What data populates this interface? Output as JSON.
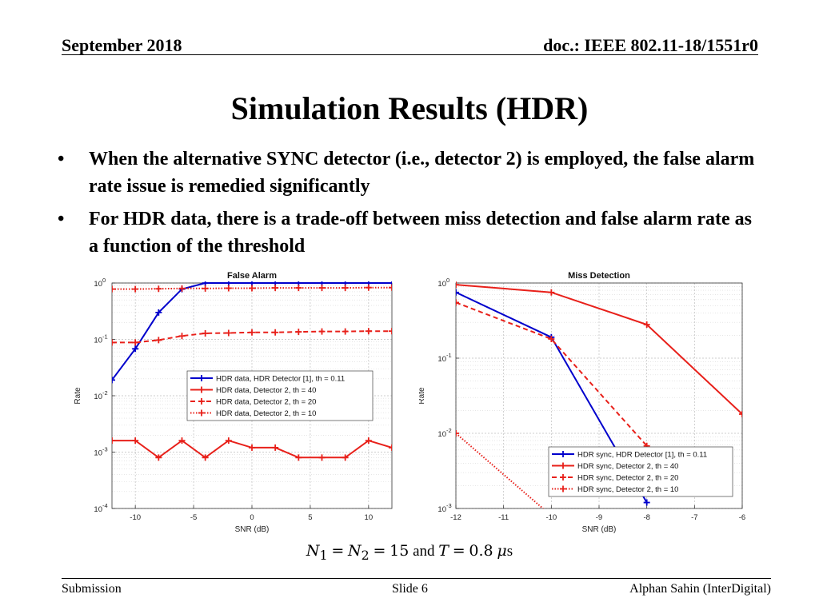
{
  "header": {
    "date": "September 2018",
    "doc": "doc.: IEEE 802.11-18/1551r0"
  },
  "title": "Simulation Results (HDR)",
  "bullets": [
    "When the alternative SYNC detector (i.e., detector 2) is employed, the false alarm rate issue is remedied significantly",
    "For HDR data, there is a trade-off between miss detection and false alarm rate as a function of the threshold"
  ],
  "caption": {
    "and_text": "and",
    "n_value": "15",
    "t_value": "0.8",
    "unit": "s"
  },
  "footer": {
    "left": "Submission",
    "center": "Slide 6",
    "right": "Alphan Sahin (InterDigital)"
  },
  "colors": {
    "blue": "#0000cc",
    "red": "#e8201a"
  },
  "chart_data": [
    {
      "type": "line",
      "title": "False Alarm",
      "xlabel": "SNR (dB)",
      "ylabel": "Rate",
      "xlim": [
        -12,
        12
      ],
      "ylim": [
        0.0001,
        1
      ],
      "yscale": "log",
      "grid": true,
      "legend_position": "center-right",
      "x_ticks": [
        "-10",
        "-5",
        "0",
        "5",
        "10"
      ],
      "y_ticks": [
        "10",
        "10",
        "10",
        "10",
        "10"
      ],
      "y_tick_exponents": [
        "0",
        "-1",
        "-2",
        "-3",
        "-4"
      ],
      "x": [
        -12,
        -10,
        -8,
        -6,
        -4,
        -2,
        0,
        2,
        4,
        6,
        8,
        10,
        12
      ],
      "series": [
        {
          "name": "HDR data, HDR Detector [1],  th = 0.11",
          "color": "#0000cc",
          "style": "solid",
          "values": [
            0.019,
            0.068,
            0.3,
            0.78,
            1.0,
            1.0,
            1.0,
            1.0,
            1.0,
            1.0,
            1.0,
            1.0,
            1.0
          ]
        },
        {
          "name": "HDR data, Detector 2, th = 40",
          "color": "#e8201a",
          "style": "solid",
          "values": [
            0.0016,
            0.0016,
            0.0008,
            0.0016,
            0.0008,
            0.0016,
            0.0012,
            0.0012,
            0.0008,
            0.0008,
            0.0008,
            0.0016,
            0.0012
          ]
        },
        {
          "name": "HDR data, Detector 2, th = 20",
          "color": "#e8201a",
          "style": "dashed",
          "values": [
            0.088,
            0.088,
            0.097,
            0.115,
            0.128,
            0.13,
            0.133,
            0.133,
            0.136,
            0.138,
            0.138,
            0.14,
            0.14
          ]
        },
        {
          "name": "HDR data, Detector 2, th = 10",
          "color": "#e8201a",
          "style": "dotted",
          "values": [
            0.78,
            0.78,
            0.79,
            0.8,
            0.8,
            0.81,
            0.81,
            0.82,
            0.82,
            0.82,
            0.82,
            0.83,
            0.83
          ]
        }
      ]
    },
    {
      "type": "line",
      "title": "Miss Detection",
      "xlabel": "SNR (dB)",
      "ylabel": "Rate",
      "xlim": [
        -12,
        -6
      ],
      "ylim": [
        0.001,
        1
      ],
      "yscale": "log",
      "grid": true,
      "legend_position": "bottom-right",
      "x_ticks": [
        "-12",
        "-11",
        "-10",
        "-9",
        "-8",
        "-7",
        "-6"
      ],
      "y_ticks": [
        "10",
        "10",
        "10",
        "10"
      ],
      "y_tick_exponents": [
        "0",
        "-1",
        "-2",
        "-3"
      ],
      "series": [
        {
          "name": "HDR sync, HDR Detector [1], th = 0.11",
          "color": "#0000cc",
          "style": "solid",
          "x": [
            -12,
            -10,
            -8
          ],
          "values": [
            0.75,
            0.19,
            0.0012
          ]
        },
        {
          "name": "HDR sync, Detector 2, th = 40",
          "color": "#e8201a",
          "style": "solid",
          "x": [
            -12,
            -10,
            -8,
            -6
          ],
          "values": [
            0.95,
            0.75,
            0.28,
            0.018
          ]
        },
        {
          "name": "HDR sync, Detector 2, th = 20",
          "color": "#e8201a",
          "style": "dashed",
          "x": [
            -12,
            -10,
            -8
          ],
          "values": [
            0.55,
            0.18,
            0.0068
          ]
        },
        {
          "name": "HDR sync, Detector 2, th = 10",
          "color": "#e8201a",
          "style": "dotted",
          "x": [
            -12,
            -10
          ],
          "values": [
            0.01,
            0.0008
          ]
        }
      ]
    }
  ]
}
